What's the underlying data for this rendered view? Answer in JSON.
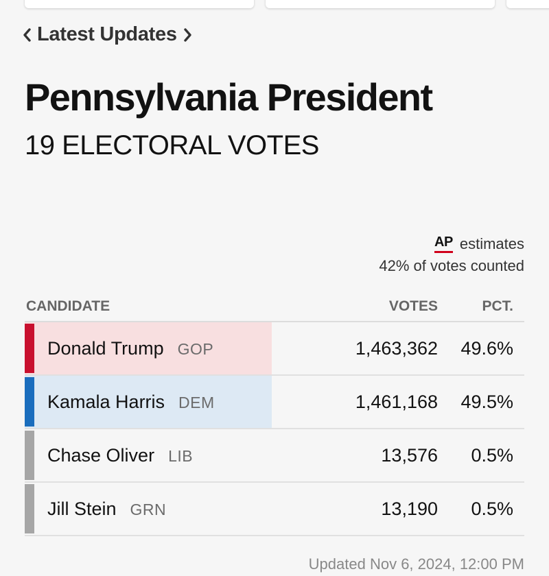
{
  "nav": {
    "label": "Latest Updates"
  },
  "race": {
    "title": "Pennsylvania President",
    "subtitle": "19 ELECTORAL VOTES"
  },
  "source": {
    "logo": "AP",
    "estimates": "estimates",
    "counted": "42% of votes counted"
  },
  "table": {
    "headers": {
      "candidate": "CANDIDATE",
      "votes": "VOTES",
      "pct": "PCT."
    },
    "rows": [
      {
        "name": "Donald Trump",
        "party": "GOP",
        "votes": "1,463,362",
        "pct": "49.6%",
        "bar_color": "#c8102e",
        "bg_color": "#f8dfe0"
      },
      {
        "name": "Kamala Harris",
        "party": "DEM",
        "votes": "1,461,168",
        "pct": "49.5%",
        "bar_color": "#1a6dbd",
        "bg_color": "#dde9f4"
      },
      {
        "name": "Chase Oliver",
        "party": "LIB",
        "votes": "13,576",
        "pct": "0.5%",
        "bar_color": "#a6a6a6",
        "bg_color": ""
      },
      {
        "name": "Jill Stein",
        "party": "GRN",
        "votes": "13,190",
        "pct": "0.5%",
        "bar_color": "#a6a6a6",
        "bg_color": ""
      }
    ]
  },
  "footer": {
    "updated": "Updated Nov 6, 2024, 12:00 PM"
  }
}
